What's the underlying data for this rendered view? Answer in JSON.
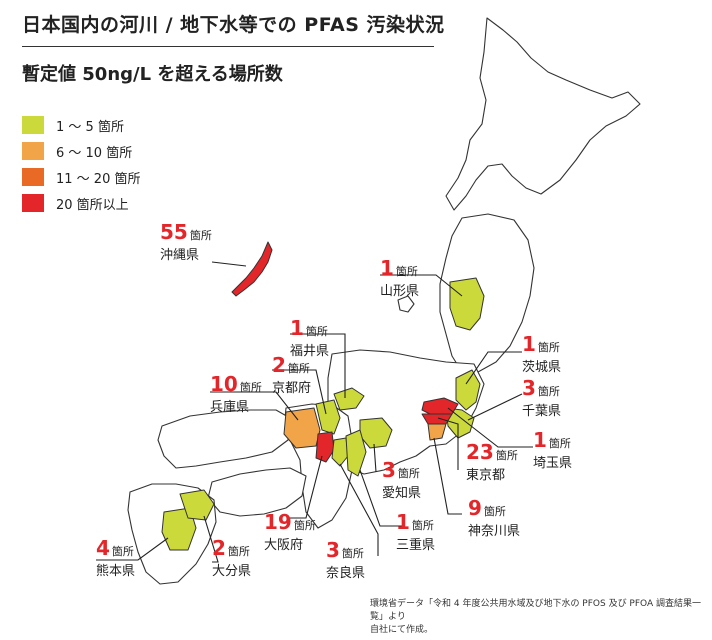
{
  "title": "日本国内の河川 /  地下水等での PFAS 汚染状況",
  "subtitle": "暫定値 50ng/L を超える場所数",
  "legend": [
    {
      "label": "1 〜 5 箇所",
      "color": "#cbd93b"
    },
    {
      "label": "6 〜 10 箇所",
      "color": "#f2a449"
    },
    {
      "label": "11 〜 20 箇所",
      "color": "#e86a24"
    },
    {
      "label": "20 箇所以上",
      "color": "#e3262a"
    }
  ],
  "unit": "箇所",
  "prefectures": [
    {
      "name": "沖縄県",
      "count": "55"
    },
    {
      "name": "山形県",
      "count": "1"
    },
    {
      "name": "福井県",
      "count": "1"
    },
    {
      "name": "京都府",
      "count": "2"
    },
    {
      "name": "兵庫県",
      "count": "10"
    },
    {
      "name": "茨城県",
      "count": "1"
    },
    {
      "name": "千葉県",
      "count": "3"
    },
    {
      "name": "埼玉県",
      "count": "1"
    },
    {
      "name": "愛知県",
      "count": "3"
    },
    {
      "name": "東京都",
      "count": "23"
    },
    {
      "name": "大阪府",
      "count": "19"
    },
    {
      "name": "三重県",
      "count": "1"
    },
    {
      "name": "神奈川県",
      "count": "9"
    },
    {
      "name": "熊本県",
      "count": "4"
    },
    {
      "name": "大分県",
      "count": "2"
    },
    {
      "name": "奈良県",
      "count": "3"
    }
  ],
  "source": [
    "環境省データ「令和 4 年度公共用水域及び地下水の PFOS 及び PFOA 調査結果一覧」より",
    "自社にて作成。"
  ]
}
